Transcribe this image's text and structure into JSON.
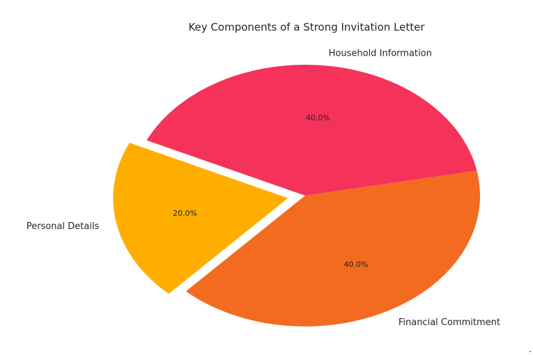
{
  "chart_data": {
    "type": "pie",
    "title": "Key Components of a Strong Invitation Letter",
    "start_angle_deg": 155,
    "direction": "clockwise",
    "slices": [
      {
        "label": "Household Information",
        "value": 40.0,
        "pct_label": "40.0%",
        "color": "#F5325A",
        "explode": false
      },
      {
        "label": "Financial Commitment",
        "value": 40.0,
        "pct_label": "40.0%",
        "color": "#F26B21",
        "explode": false
      },
      {
        "label": "Personal Details",
        "value": 20.0,
        "pct_label": "20.0%",
        "color": "#FFAE00",
        "explode": true
      }
    ]
  },
  "footer": {
    "stray_mark": "."
  }
}
